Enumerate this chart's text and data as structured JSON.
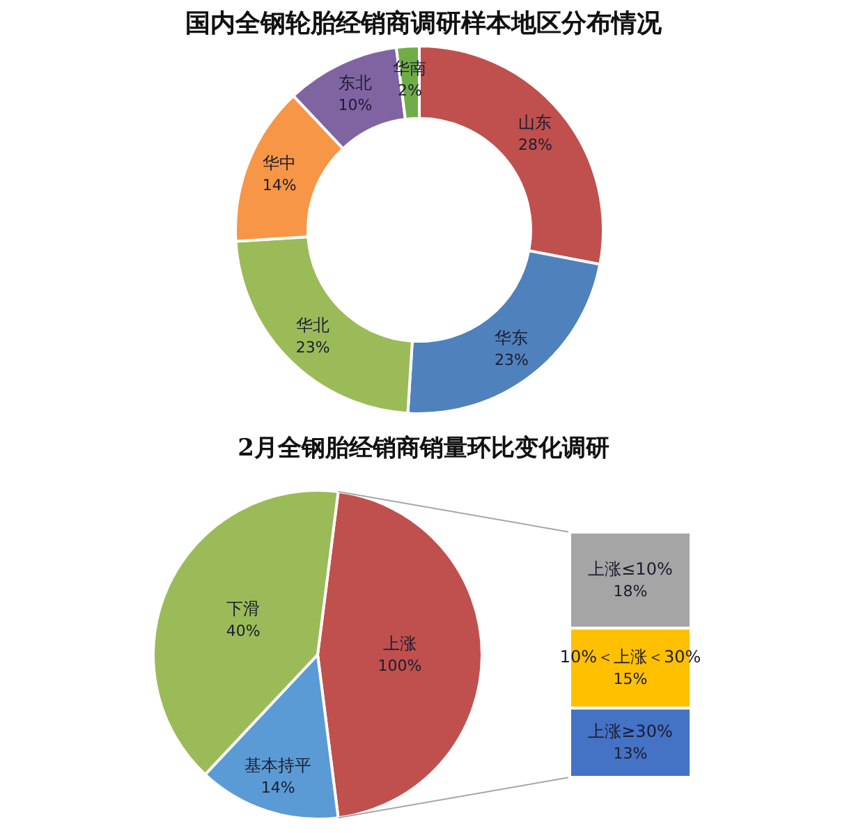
{
  "chart_data": [
    {
      "type": "donut",
      "title": "国内全钢轮胎经销商调研样本地区分布情况",
      "categories": [
        "山东",
        "华东",
        "华北",
        "华中",
        "东北",
        "华南"
      ],
      "values": [
        28,
        23,
        23,
        14,
        10,
        2
      ],
      "value_labels": [
        "28%",
        "23%",
        "23%",
        "14%",
        "10%",
        "2%"
      ],
      "colors": [
        "#c0504d",
        "#4f81bd",
        "#9bbb59",
        "#f79646",
        "#8064a2",
        "#70ad47"
      ]
    },
    {
      "type": "pie",
      "title": "2月全钢胎经销商销量环比变化调研",
      "categories": [
        "上涨",
        "基本持平",
        "下滑"
      ],
      "values": [
        46,
        14,
        40
      ],
      "value_labels": [
        null,
        "14%",
        "40%"
      ],
      "annotations": [
        "100%"
      ],
      "colors": [
        "#c0504d",
        "#5b9bd5",
        "#9bbb59"
      ]
    },
    {
      "type": "bar",
      "stacked": true,
      "categories": [
        null
      ],
      "series": [
        {
          "name": "上涨≥30%",
          "color": "#4472c4",
          "values": [
            13
          ],
          "value_labels": [
            "13%"
          ]
        },
        {
          "name": "10%＜上涨＜30%",
          "color": "#ffc000",
          "values": [
            15
          ],
          "value_labels": [
            "15%"
          ]
        },
        {
          "name": "上涨≤10%",
          "color": "#a5a5a5",
          "values": [
            18
          ],
          "value_labels": [
            "18%"
          ]
        }
      ]
    }
  ]
}
